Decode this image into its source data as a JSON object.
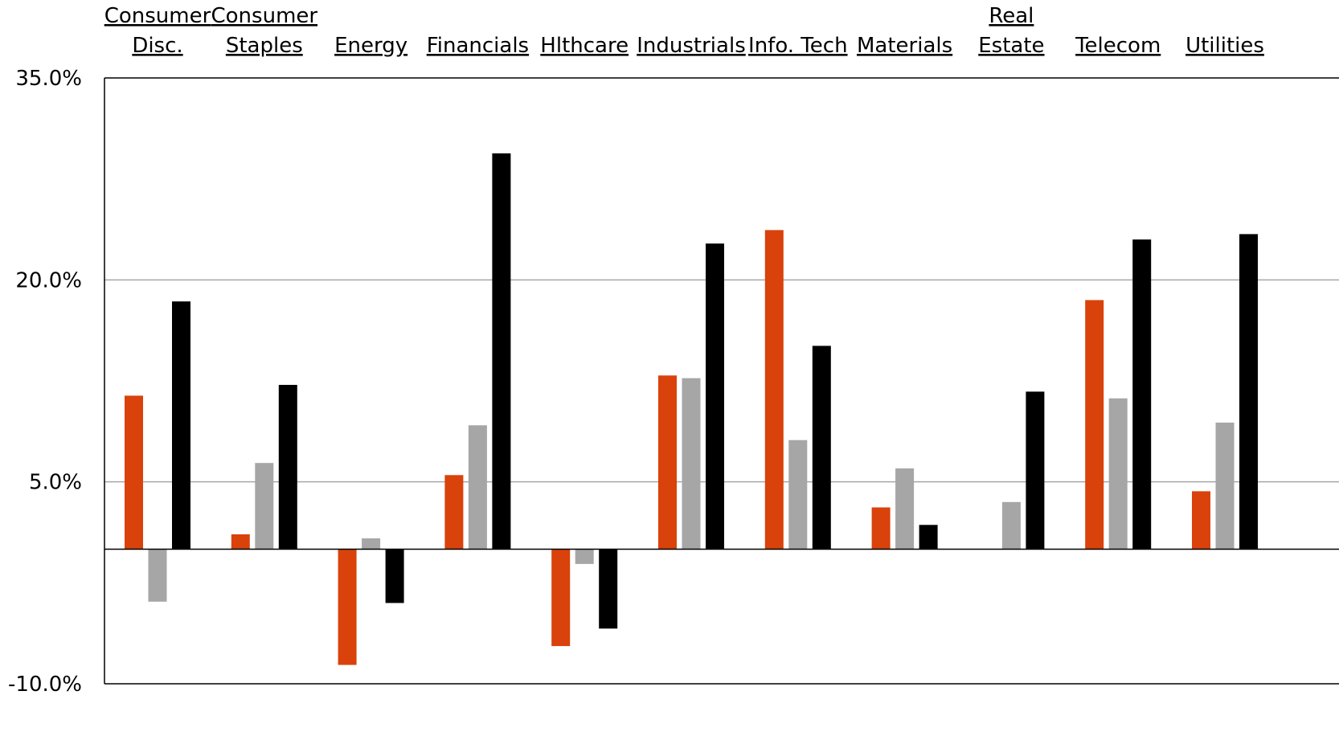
{
  "chart_data": {
    "type": "bar",
    "categories": [
      [
        "Consumer",
        "Disc."
      ],
      [
        "Consumer",
        "Staples"
      ],
      [
        "Energy"
      ],
      [
        "Financials"
      ],
      [
        "Hlthcare"
      ],
      [
        "Industrials"
      ],
      [
        "Info. Tech"
      ],
      [
        "Materials"
      ],
      [
        "Real",
        "Estate"
      ],
      [
        "Telecom"
      ],
      [
        "Utilities"
      ]
    ],
    "series": [
      {
        "color": "#d9420b",
        "values": [
          11.4,
          1.1,
          -8.6,
          5.5,
          -7.2,
          12.9,
          23.7,
          3.1,
          0.0,
          18.5,
          4.3
        ]
      },
      {
        "color": "#a6a6a6",
        "values": [
          -3.9,
          6.4,
          0.8,
          9.2,
          -1.1,
          12.7,
          8.1,
          6.0,
          3.5,
          11.2,
          9.4
        ]
      },
      {
        "color": "#000000",
        "values": [
          18.4,
          12.2,
          -4.0,
          29.4,
          -5.9,
          22.7,
          15.1,
          1.8,
          11.7,
          23.0,
          23.4
        ]
      }
    ],
    "y_ticks": [
      "35.0%",
      "20.0%",
      "5.0%",
      "-10.0%"
    ],
    "ylim": [
      -10,
      35
    ],
    "grid": true,
    "legend": "none",
    "title": "",
    "xlabel": "",
    "ylabel": ""
  }
}
